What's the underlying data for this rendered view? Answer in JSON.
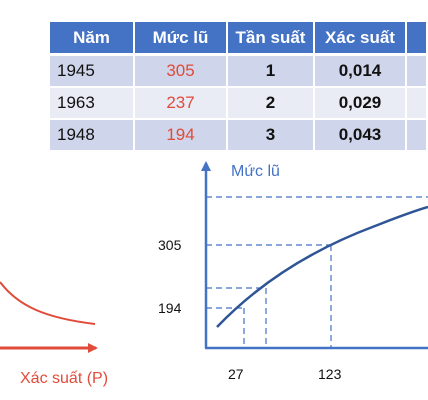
{
  "table": {
    "headers": [
      "Năm",
      "Mức lũ",
      "Tần suất",
      "Xác suất",
      ""
    ],
    "rows": [
      {
        "year": "1945",
        "level": "305",
        "frequency": "1",
        "probability": "0,014"
      },
      {
        "year": "1963",
        "level": "237",
        "frequency": "2",
        "probability": "0,029"
      },
      {
        "year": "1948",
        "level": "194",
        "frequency": "3",
        "probability": "0,043"
      }
    ]
  },
  "left_chart": {
    "x_axis_label": "Xác suất (P)",
    "curve_color": "#e04b3a"
  },
  "right_chart": {
    "y_axis_label": "Mức lũ",
    "y_tick_labels": [
      "305",
      "194"
    ],
    "x_tick_labels": [
      "27",
      "123"
    ],
    "axis_color": "#4472c4",
    "curve_color": "#2f5597"
  },
  "colors": {
    "header_bg": "#4472c4",
    "row_dark": "#cfd5ea",
    "row_light": "#e9ebf5",
    "highlight_red": "#e04b3a"
  }
}
